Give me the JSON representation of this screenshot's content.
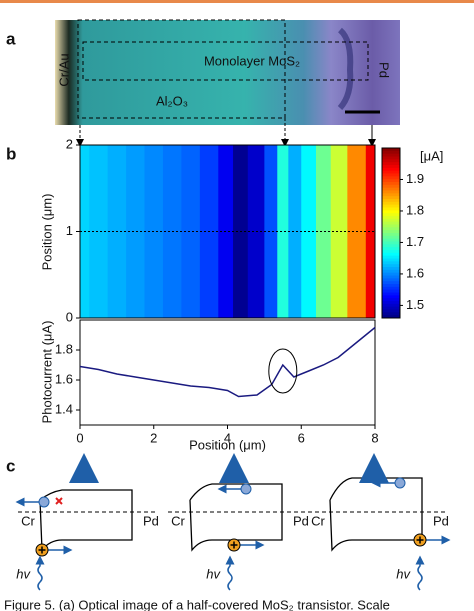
{
  "panel_a": {
    "label": "a",
    "cr_au": "Cr/Au",
    "mos2": "Monolayer MoS₂",
    "al2o3": "Al₂O₃",
    "pd": "Pd"
  },
  "panel_b": {
    "label": "b"
  },
  "panel_c": {
    "label": "c",
    "diagrams": [
      {
        "left": "Cr",
        "right": "Pd",
        "light": "hv"
      },
      {
        "left": "Cr",
        "right": "Pd",
        "light": "hv"
      },
      {
        "left": "Cr",
        "right": "Pd",
        "light": "hv"
      }
    ]
  },
  "caption": "Figure 5. (a) Optical image of a half-covered MoS₂ transistor. Scale",
  "chart_data": [
    {
      "type": "heatmap",
      "ylabel": "Position (μm)",
      "colorbar_label": "[μA]",
      "x": [
        0,
        0.5,
        1,
        1.5,
        2,
        2.5,
        3,
        3.5,
        4,
        4.3,
        4.8,
        5.2,
        5.5,
        5.8,
        6.2,
        6.6,
        7,
        7.5,
        8
      ],
      "values": [
        1.64,
        1.63,
        1.62,
        1.61,
        1.6,
        1.59,
        1.58,
        1.56,
        1.52,
        1.47,
        1.5,
        1.57,
        1.68,
        1.62,
        1.66,
        1.72,
        1.77,
        1.86,
        1.94
      ],
      "xlim": [
        0,
        8
      ],
      "ylim": [
        0,
        2
      ],
      "yticks": [
        0,
        1,
        2
      ],
      "dotted_line_y": 1,
      "clim": [
        1.46,
        2.0
      ],
      "cticks": [
        1.5,
        1.6,
        1.7,
        1.8,
        1.9
      ]
    },
    {
      "type": "line",
      "xlabel": "Position (μm)",
      "ylabel": "Photocurrent (μA)",
      "x": [
        0,
        0.5,
        1,
        1.5,
        2,
        2.5,
        3,
        3.5,
        4,
        4.3,
        4.8,
        5.2,
        5.5,
        5.8,
        6.2,
        6.6,
        7,
        7.5,
        8
      ],
      "values": [
        1.69,
        1.67,
        1.64,
        1.62,
        1.6,
        1.58,
        1.56,
        1.55,
        1.53,
        1.49,
        1.5,
        1.57,
        1.7,
        1.62,
        1.66,
        1.7,
        1.75,
        1.85,
        1.95
      ],
      "color": "#1a1a80",
      "xlim": [
        0,
        8
      ],
      "xticks": [
        0,
        2,
        4,
        6,
        8
      ],
      "ylim": [
        1.3,
        2.0
      ],
      "yticks": [
        1.4,
        1.6,
        1.8
      ]
    }
  ]
}
